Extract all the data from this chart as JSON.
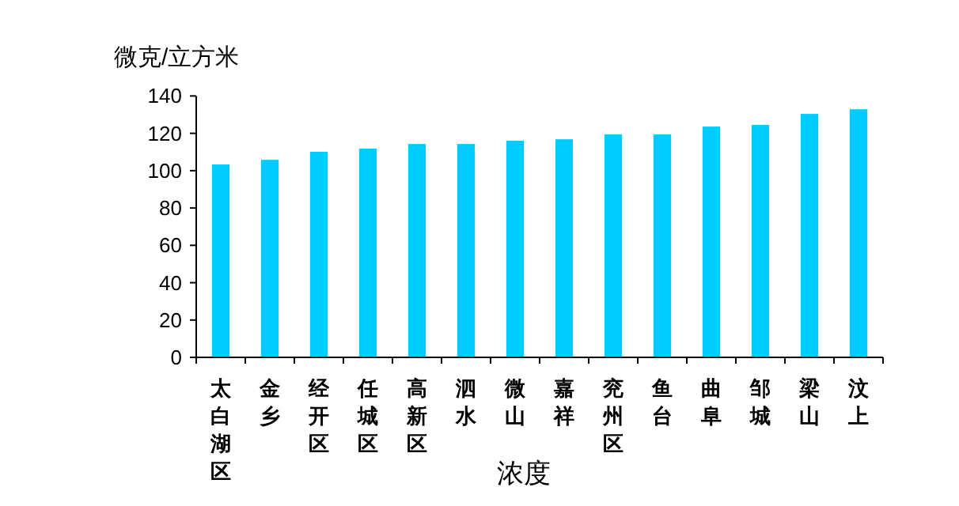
{
  "chart_data": {
    "type": "bar",
    "ylabel": "微克/立方米",
    "xlabel": "浓度",
    "categories": [
      "太白湖区",
      "金乡",
      "经开区",
      "任城区",
      "高新区",
      "泗水",
      "微山",
      "嘉祥",
      "兖州区",
      "鱼台",
      "曲阜",
      "邹城",
      "梁山",
      "汶上"
    ],
    "values": [
      103.3,
      105.8,
      110.1,
      111.8,
      114.3,
      114.3,
      116,
      116.8,
      119.4,
      119.4,
      123.6,
      124.5,
      130.4,
      132.9
    ],
    "color": "#00ccff",
    "ylim": [
      0,
      140
    ],
    "yticks": [
      0,
      20,
      40,
      60,
      80,
      100,
      120,
      140
    ]
  }
}
